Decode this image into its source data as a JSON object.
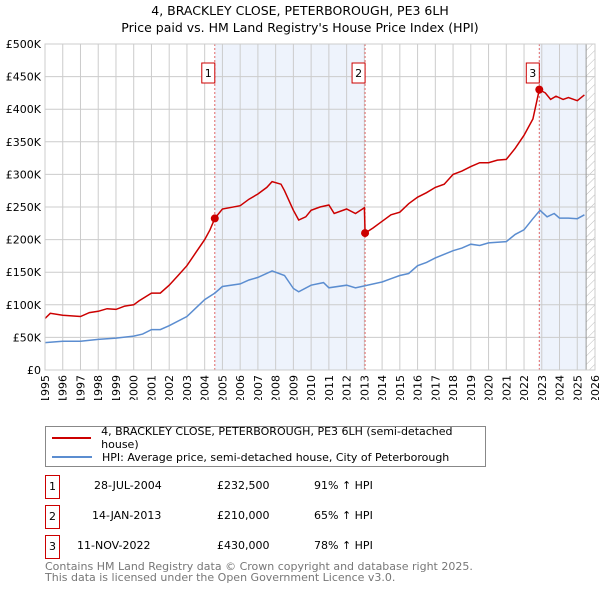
{
  "chart_data": {
    "type": "line",
    "title": "4, BRACKLEY CLOSE, PETERBOROUGH, PE3 6LH",
    "subtitle": "Price paid vs. HM Land Registry's House Price Index (HPI)",
    "xlim": [
      1995,
      2026
    ],
    "ylim": [
      0,
      500000
    ],
    "y_ticks": [
      0,
      50000,
      100000,
      150000,
      200000,
      250000,
      300000,
      350000,
      400000,
      450000,
      500000
    ],
    "y_tick_labels": [
      "£0",
      "£50K",
      "£100K",
      "£150K",
      "£200K",
      "£250K",
      "£300K",
      "£350K",
      "£400K",
      "£450K",
      "£500K"
    ],
    "x_ticks": [
      1995,
      1996,
      1997,
      1998,
      1999,
      2000,
      2001,
      2002,
      2003,
      2004,
      2005,
      2006,
      2007,
      2008,
      2009,
      2010,
      2011,
      2012,
      2013,
      2014,
      2015,
      2016,
      2017,
      2018,
      2019,
      2020,
      2021,
      2022,
      2023,
      2024,
      2025,
      2026
    ],
    "grid": true,
    "shaded_periods": [
      [
        2004.57,
        2013.04
      ],
      [
        2022.86,
        2025.5
      ]
    ],
    "hatched_from": 2025.5,
    "series": [
      {
        "name": "4, BRACKLEY CLOSE, PETERBOROUGH, PE3 6LH (semi-detached house)",
        "color": "#cc0000",
        "x": [
          1995,
          1995.3,
          1996,
          1997,
          1997.5,
          1998,
          1998.5,
          1999,
          1999.5,
          2000,
          2000.3,
          2001,
          2001.5,
          2002,
          2002.5,
          2003,
          2003.5,
          2004,
          2004.3,
          2004.57,
          2005,
          2006,
          2006.5,
          2007,
          2007.5,
          2007.8,
          2008.3,
          2008.5,
          2009,
          2009.3,
          2009.7,
          2010,
          2010.5,
          2011,
          2011.3,
          2012,
          2012.5,
          2013,
          2013.04,
          2013.5,
          2014,
          2014.5,
          2015,
          2015.5,
          2016,
          2016.5,
          2017,
          2017.5,
          2018,
          2018.5,
          2019,
          2019.5,
          2020,
          2020.5,
          2021,
          2021.5,
          2022,
          2022.5,
          2022.86,
          2023.2,
          2023.5,
          2023.8,
          2024.2,
          2024.5,
          2025,
          2025.4
        ],
        "y": [
          79000,
          87000,
          84000,
          82000,
          88000,
          90000,
          94000,
          93000,
          98000,
          100000,
          106000,
          118000,
          118000,
          130000,
          145000,
          160000,
          180000,
          200000,
          215000,
          232500,
          247000,
          252000,
          262000,
          270000,
          280000,
          289000,
          285000,
          275000,
          245000,
          230000,
          235000,
          245000,
          250000,
          253000,
          240000,
          247000,
          240000,
          249000,
          210000,
          218000,
          228000,
          238000,
          242000,
          255000,
          265000,
          272000,
          280000,
          285000,
          300000,
          305000,
          312000,
          318000,
          318000,
          322000,
          323000,
          340000,
          360000,
          385000,
          430000,
          425000,
          415000,
          420000,
          415000,
          418000,
          413000,
          422000
        ]
      },
      {
        "name": "HPI: Average price, semi-detached house, City of Peterborough",
        "color": "#5b8dd0",
        "x": [
          1995,
          1996,
          1997,
          1998,
          1999,
          2000,
          2000.5,
          2001,
          2001.5,
          2002,
          2003,
          2003.5,
          2004,
          2004.57,
          2005,
          2006,
          2006.5,
          2007,
          2007.8,
          2008.5,
          2009,
          2009.3,
          2010,
          2010.7,
          2011,
          2012,
          2012.5,
          2013,
          2014,
          2014.5,
          2015,
          2015.5,
          2016,
          2016.5,
          2017,
          2018,
          2018.5,
          2019,
          2019.5,
          2020,
          2020.5,
          2021,
          2021.5,
          2022,
          2022.5,
          2022.9,
          2023.3,
          2023.7,
          2024,
          2024.5,
          2025,
          2025.4
        ],
        "y": [
          42000,
          44000,
          44000,
          47000,
          49000,
          52000,
          55000,
          62000,
          62000,
          68000,
          82000,
          95000,
          108000,
          118000,
          128000,
          132000,
          138000,
          142000,
          152000,
          145000,
          125000,
          120000,
          130000,
          134000,
          126000,
          130000,
          126000,
          129000,
          135000,
          140000,
          145000,
          148000,
          160000,
          165000,
          172000,
          183000,
          187000,
          193000,
          191000,
          195000,
          196000,
          197000,
          208000,
          215000,
          232000,
          245000,
          235000,
          240000,
          233000,
          233000,
          232000,
          238000
        ]
      }
    ],
    "sales": [
      {
        "label": "1",
        "x": 2004.57,
        "y": 232500
      },
      {
        "label": "2",
        "x": 2013.04,
        "y": 210000
      },
      {
        "label": "3",
        "x": 2022.86,
        "y": 430000
      }
    ]
  },
  "legend": {
    "property": "4, BRACKLEY CLOSE, PETERBOROUGH, PE3 6LH (semi-detached house)",
    "hpi": "HPI: Average price, semi-detached house, City of Peterborough"
  },
  "transactions": [
    {
      "num": "1",
      "date": "28-JUL-2004",
      "price": "£232,500",
      "hpi": "91% ↑ HPI"
    },
    {
      "num": "2",
      "date": "14-JAN-2013",
      "price": "£210,000",
      "hpi": "65% ↑ HPI"
    },
    {
      "num": "3",
      "date": "11-NOV-2022",
      "price": "£430,000",
      "hpi": "78% ↑ HPI"
    }
  ],
  "footer": {
    "line1": "Contains HM Land Registry data © Crown copyright and database right 2025.",
    "line2": "This data is licensed under the Open Government Licence v3.0."
  },
  "colors": {
    "property": "#cc0000",
    "hpi": "#5b8dd0",
    "shade": "#eef3fc"
  }
}
